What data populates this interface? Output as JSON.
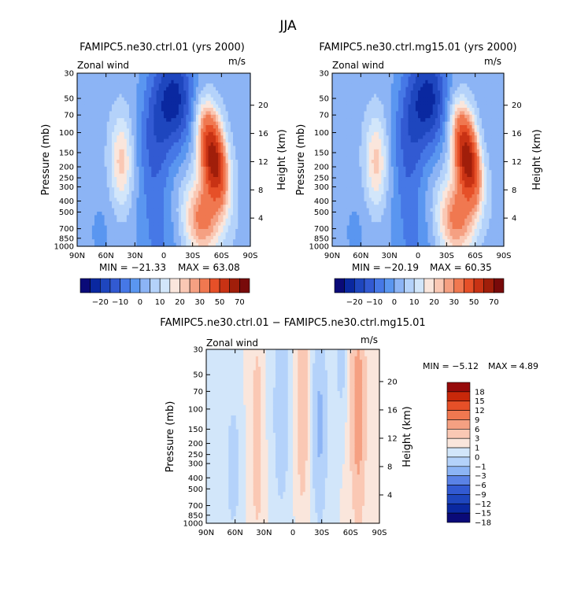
{
  "figure": {
    "season_title": "JJA"
  },
  "colors": {
    "ctrl_scale": [
      "#0a0a78",
      "#0a28a0",
      "#1e46be",
      "#325ad2",
      "#4678e6",
      "#5a96f0",
      "#8cb4f5",
      "#b4d2fa",
      "#d2e6fa",
      "#fae6dc",
      "#fac8b4",
      "#f5a082",
      "#f07850",
      "#e65028",
      "#c83214",
      "#a01e0a",
      "#780a0a"
    ],
    "diff_scale": [
      "#0a0a78",
      "#0a28a0",
      "#1e46be",
      "#325ad2",
      "#5a82e6",
      "#8cb4f5",
      "#b4d2fa",
      "#d2e6fa",
      "#fae6dc",
      "#fac8b4",
      "#f5a082",
      "#f07850",
      "#e65028",
      "#c8280a",
      "#960a0a"
    ]
  },
  "chart_data": [
    {
      "type": "heatmap",
      "id": "ctrl",
      "title": "FAMIPC5.ne30.ctrl.01 (yrs 2000)",
      "variable": "Zonal wind",
      "units": "m/s",
      "ylabel": "Pressure (mb)",
      "ylabel_right": "Height (km)",
      "x_ticks": [
        "90N",
        "60N",
        "30N",
        "0",
        "30S",
        "60S",
        "90S"
      ],
      "y_ticks": [
        "30",
        "50",
        "70",
        "100",
        "150",
        "200",
        "250",
        "300",
        "400",
        "500",
        "700",
        "850",
        "1000"
      ],
      "y_ticks_right": [
        "20",
        "16",
        "12",
        "8",
        "4"
      ],
      "min_label": "MIN = −21.33",
      "max_label": "MAX = 63.08",
      "min": -21.33,
      "max": 63.08,
      "colorbar_labels": [
        "−20",
        "−10",
        "0",
        "10",
        "20",
        "30",
        "50",
        "70"
      ],
      "features": [
        {
          "kind": "easterly_jet",
          "lat": -15,
          "p": 30,
          "value": -21
        },
        {
          "kind": "westerly_jet",
          "lat": 52,
          "p": 200,
          "value": 63
        },
        {
          "kind": "westerly_jet",
          "lat": -45,
          "p": 200,
          "value": 18
        }
      ]
    },
    {
      "type": "heatmap",
      "id": "mg15",
      "title": "FAMIPC5.ne30.ctrl.mg15.01 (yrs 2000)",
      "variable": "Zonal wind",
      "units": "m/s",
      "ylabel": "Pressure (mb)",
      "ylabel_right": "Height (km)",
      "x_ticks": [
        "90N",
        "60N",
        "30N",
        "0",
        "30S",
        "60S",
        "90S"
      ],
      "y_ticks": [
        "30",
        "50",
        "70",
        "100",
        "150",
        "200",
        "250",
        "300",
        "400",
        "500",
        "700",
        "850",
        "1000"
      ],
      "y_ticks_right": [
        "20",
        "16",
        "12",
        "8",
        "4"
      ],
      "min_label": "MIN = −20.19",
      "max_label": "MAX = 60.35",
      "min": -20.19,
      "max": 60.35,
      "colorbar_labels": [
        "−20",
        "−10",
        "0",
        "10",
        "20",
        "30",
        "50",
        "70"
      ]
    },
    {
      "type": "heatmap",
      "id": "diff",
      "title": "FAMIPC5.ne30.ctrl.01 − FAMIPC5.ne30.ctrl.mg15.01",
      "variable": "Zonal wind",
      "units": "m/s",
      "ylabel": "Pressure (mb)",
      "ylabel_right": "Height (km)",
      "x_ticks": [
        "90N",
        "60N",
        "30N",
        "0",
        "30S",
        "60S",
        "90S"
      ],
      "y_ticks": [
        "30",
        "50",
        "70",
        "100",
        "150",
        "200",
        "250",
        "300",
        "400",
        "500",
        "700",
        "850",
        "1000"
      ],
      "y_ticks_right": [
        "20",
        "16",
        "12",
        "8",
        "4"
      ],
      "min_label": "MIN =",
      "min_value": "−5.12",
      "max_label": "MAX =",
      "max_value": "4.89",
      "min": -5.12,
      "max": 4.89,
      "colorbar_labels": [
        "18",
        "15",
        "12",
        "9",
        "6",
        "3",
        "1",
        "0",
        "−1",
        "−3",
        "−6",
        "−9",
        "−12",
        "−15",
        "−18"
      ]
    }
  ]
}
